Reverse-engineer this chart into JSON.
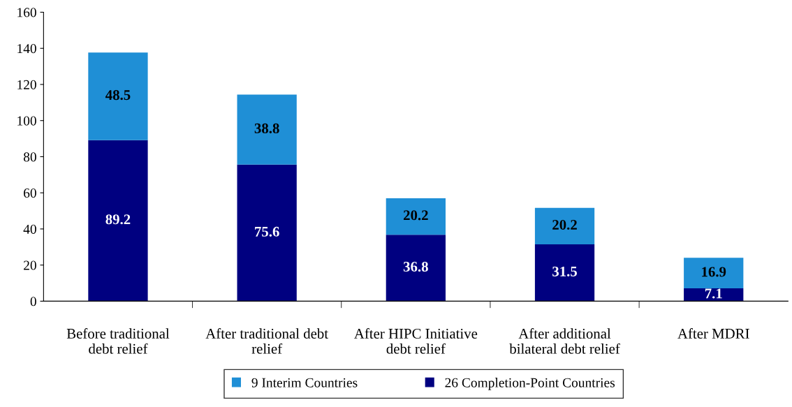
{
  "chart_data": {
    "type": "bar",
    "stacked": true,
    "categories": [
      "Before traditional\ndebt relief",
      "After traditional debt\nrelief",
      "After HIPC Initiative\ndebt relief",
      "After additional\nbilateral debt relief",
      "After MDRI"
    ],
    "series": [
      {
        "name": "26 Completion-Point Countries",
        "color": "#000080",
        "values": [
          89.2,
          75.6,
          36.8,
          31.5,
          7.1
        ]
      },
      {
        "name": "9 Interim Countries",
        "color": "#1f8fd6",
        "values": [
          48.5,
          38.8,
          20.2,
          20.2,
          16.9
        ]
      }
    ],
    "ylim": [
      0,
      160
    ],
    "yticks": [
      0,
      20,
      40,
      60,
      80,
      100,
      120,
      140,
      160
    ],
    "data_labels": true,
    "grid": false,
    "legend": "bottom"
  }
}
